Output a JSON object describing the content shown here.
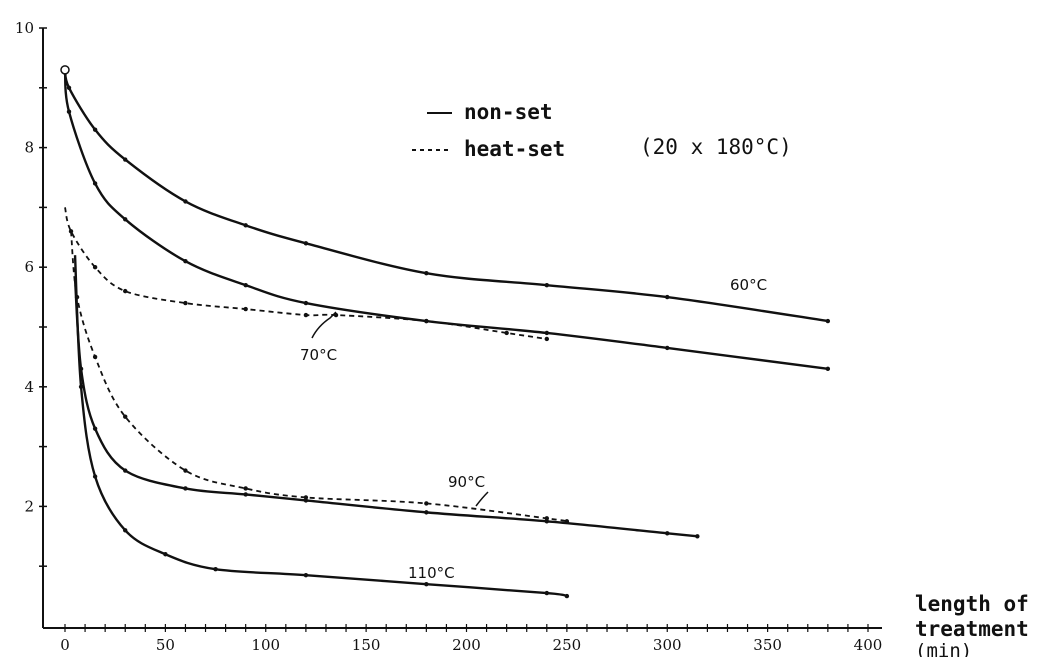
{
  "chart_data": {
    "type": "line",
    "title": "",
    "xlabel": "length of treatment",
    "xunit": "(min)",
    "ylabel": "",
    "xlim": [
      -10,
      410
    ],
    "ylim": [
      0,
      10
    ],
    "xticks": [
      0,
      50,
      100,
      150,
      200,
      250,
      300,
      350,
      400
    ],
    "yticks": [
      2,
      4,
      6,
      8,
      10
    ],
    "grid": false,
    "legend": {
      "position": "top-center",
      "entries": [
        {
          "label": "non-set",
          "style": "solid"
        },
        {
          "label": "heat-set",
          "style": "dashed"
        }
      ],
      "note": "(20 x 180°C)"
    },
    "series": [
      {
        "name": "60°C",
        "style": "solid",
        "x": [
          0,
          2,
          15,
          30,
          60,
          90,
          120,
          180,
          240,
          300,
          380
        ],
        "y": [
          9.3,
          9.0,
          8.3,
          7.8,
          7.1,
          6.7,
          6.4,
          5.9,
          5.7,
          5.5,
          5.1
        ]
      },
      {
        "name": "70°C",
        "style": "solid",
        "x": [
          0,
          2,
          15,
          30,
          60,
          90,
          120,
          180,
          240,
          300,
          380
        ],
        "y": [
          9.3,
          8.6,
          7.4,
          6.8,
          6.1,
          5.7,
          5.4,
          5.1,
          4.9,
          4.65,
          4.3
        ]
      },
      {
        "name": "70°C",
        "style": "dashed",
        "x": [
          0,
          3,
          15,
          30,
          60,
          90,
          120,
          135,
          180,
          220,
          240
        ],
        "y": [
          7.0,
          6.6,
          6.0,
          5.6,
          5.4,
          5.3,
          5.2,
          5.2,
          5.1,
          4.9,
          4.8
        ]
      },
      {
        "name": "90°C",
        "style": "solid",
        "x": [
          5,
          8,
          15,
          30,
          60,
          90,
          120,
          180,
          240,
          300,
          315
        ],
        "y": [
          5.8,
          4.3,
          3.3,
          2.6,
          2.3,
          2.2,
          2.1,
          1.9,
          1.75,
          1.55,
          1.5
        ]
      },
      {
        "name": "90°C",
        "style": "dashed",
        "x": [
          3,
          6,
          15,
          30,
          60,
          90,
          120,
          180,
          240,
          250
        ],
        "y": [
          6.6,
          5.5,
          4.5,
          3.5,
          2.6,
          2.3,
          2.15,
          2.05,
          1.8,
          1.75
        ]
      },
      {
        "name": "110°C",
        "style": "solid",
        "x": [
          5,
          8,
          15,
          30,
          50,
          75,
          120,
          180,
          240,
          250
        ],
        "y": [
          6.2,
          4.0,
          2.5,
          1.6,
          1.2,
          0.95,
          0.85,
          0.7,
          0.55,
          0.5
        ]
      }
    ],
    "labels": [
      {
        "text": "60°C",
        "series": 0
      },
      {
        "text": "70°C",
        "series": 1
      },
      {
        "text": "90°C",
        "series": 3
      },
      {
        "text": "110°C",
        "series": 5
      }
    ]
  }
}
